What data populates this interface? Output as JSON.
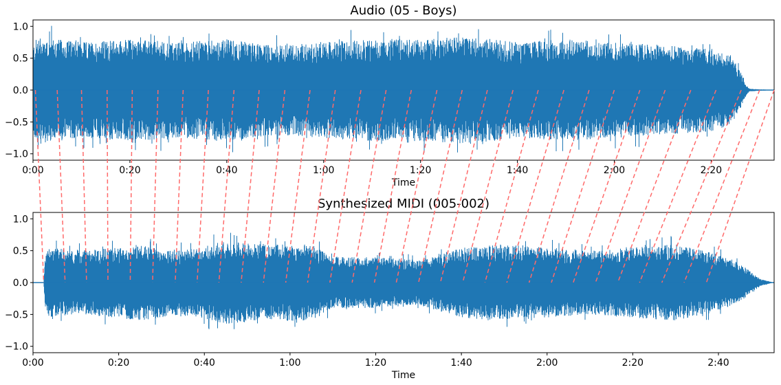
{
  "chart_data": [
    {
      "type": "line",
      "title": "Audio (05 - Boys)",
      "xlabel": "Time",
      "ylabel": "",
      "xlim": [
        0,
        153
      ],
      "ylim": [
        -1.1,
        1.1
      ],
      "x_ticks": [
        0,
        20,
        40,
        60,
        80,
        100,
        120,
        140
      ],
      "x_tick_labels": [
        "0:00",
        "0:20",
        "0:40",
        "1:00",
        "1:20",
        "1:40",
        "2:00",
        "2:20"
      ],
      "y_ticks": [
        -1.0,
        -0.5,
        0.0,
        0.5,
        1.0
      ],
      "y_tick_labels": [
        "−1.0",
        "−0.5",
        "0.0",
        "0.5",
        "1.0"
      ],
      "series": [
        {
          "color": "#1f77b4",
          "envelope_time": [
            0,
            1,
            5,
            10,
            20,
            30,
            40,
            50,
            60,
            70,
            80,
            90,
            100,
            110,
            120,
            130,
            140,
            144,
            146,
            147,
            148,
            153
          ],
          "envelope_amp": [
            0.7,
            0.85,
            0.8,
            0.75,
            0.8,
            0.75,
            0.8,
            0.7,
            0.75,
            0.8,
            0.8,
            0.85,
            0.75,
            0.8,
            0.75,
            0.7,
            0.65,
            0.55,
            0.3,
            0.1,
            0.02,
            0.0
          ]
        }
      ]
    },
    {
      "type": "line",
      "title": "Synthesized MIDI (005-002)",
      "xlabel": "Time",
      "ylabel": "",
      "xlim": [
        0,
        173
      ],
      "ylim": [
        -1.1,
        1.1
      ],
      "x_ticks": [
        0,
        20,
        40,
        60,
        80,
        100,
        120,
        140,
        160
      ],
      "x_tick_labels": [
        "0:00",
        "0:20",
        "0:40",
        "1:00",
        "1:20",
        "1:40",
        "2:00",
        "2:20",
        "2:40"
      ],
      "y_ticks": [
        -1.0,
        -0.5,
        0.0,
        0.5,
        1.0
      ],
      "y_tick_labels": [
        "−1.0",
        "−0.5",
        "0.0",
        "0.5",
        "1.0"
      ],
      "series": [
        {
          "color": "#1f77b4",
          "envelope_time": [
            0,
            2.5,
            3,
            10,
            20,
            25,
            35,
            45,
            55,
            65,
            70,
            80,
            90,
            100,
            110,
            120,
            130,
            140,
            150,
            160,
            165,
            170,
            173
          ],
          "envelope_amp": [
            0.0,
            0.0,
            0.55,
            0.5,
            0.55,
            0.6,
            0.5,
            0.65,
            0.6,
            0.6,
            0.4,
            0.4,
            0.35,
            0.55,
            0.6,
            0.55,
            0.5,
            0.55,
            0.6,
            0.45,
            0.3,
            0.05,
            0.0
          ]
        }
      ]
    }
  ],
  "alignment": {
    "color": "#ff6a6a",
    "audio_times": [
      0.5,
      5,
      10,
      15.3,
      20.5,
      25.8,
      31,
      36.2,
      41.5,
      46.7,
      52,
      57.2,
      62.4,
      67.7,
      72.9,
      78.1,
      83.4,
      88.6,
      93.8,
      99.1,
      104.3,
      109.6,
      114.8,
      120,
      125.3,
      130.5,
      135.8,
      141,
      146.2,
      150,
      153
    ],
    "midi_times": [
      2.5,
      7.5,
      12.5,
      17.5,
      22.7,
      27.9,
      33.2,
      38.3,
      43.4,
      48.6,
      53.8,
      59,
      64.1,
      69.3,
      74.5,
      79.7,
      84.8,
      90,
      95.1,
      100.3,
      105.5,
      110.6,
      115.8,
      121,
      126.1,
      131.3,
      136.5,
      141.6,
      146.8,
      152,
      157.2
    ]
  }
}
